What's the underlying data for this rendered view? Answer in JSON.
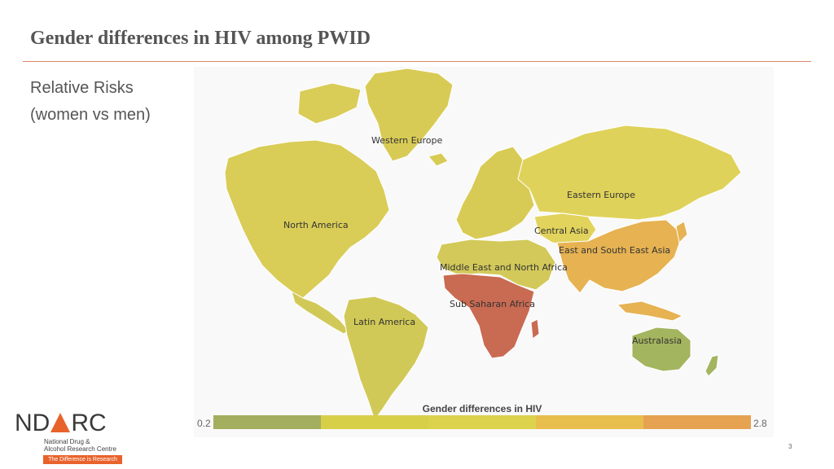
{
  "slide": {
    "title": "Gender differences in HIV among PWID",
    "subtitle_line1": "Relative Risks",
    "subtitle_line2": "(women vs men)",
    "page_number": "3"
  },
  "map": {
    "regions": [
      {
        "name": "Western Europe",
        "color": "#d8cb55"
      },
      {
        "name": "Eastern Europe",
        "color": "#dfd25a"
      },
      {
        "name": "North America",
        "color": "#d9cc57"
      },
      {
        "name": "Central Asia",
        "color": "#e2d35c"
      },
      {
        "name": "East and South East Asia",
        "color": "#e6b252"
      },
      {
        "name": "Middle East and North Africa",
        "color": "#d3c95a"
      },
      {
        "name": "Sub Saharan Africa",
        "color": "#c96a52"
      },
      {
        "name": "Latin America",
        "color": "#d1c957"
      },
      {
        "name": "Australasia",
        "color": "#a3b55e"
      }
    ],
    "legend": {
      "title": "Gender differences in HIV",
      "min": "0.2",
      "max": "2.8",
      "colors": [
        "#a3ae5f",
        "#d8cf49",
        "#dcd24c",
        "#e8be4d",
        "#e5a352",
        "#c96a52"
      ]
    }
  },
  "logo": {
    "name": "NDARC",
    "line1": "National Drug &",
    "line2": "Alcohol Research Centre",
    "tagline": "The Difference is Research"
  }
}
